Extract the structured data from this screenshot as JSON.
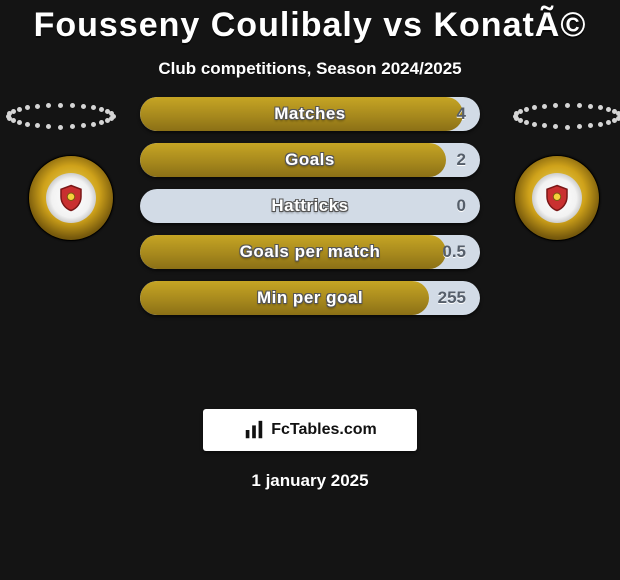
{
  "header": {
    "title": "Fousseny Coulibaly vs KonatÃ©",
    "subtitle": "Club competitions, Season 2024/2025"
  },
  "bars": {
    "track_color": "#d2dbe6",
    "fill_gradient": [
      "#c6a524",
      "#a7891d",
      "#8b7016"
    ],
    "items": [
      {
        "label": "Matches",
        "value": "4",
        "fill_pct": 95
      },
      {
        "label": "Goals",
        "value": "2",
        "fill_pct": 90
      },
      {
        "label": "Hattricks",
        "value": "0",
        "fill_pct": 0
      },
      {
        "label": "Goals per match",
        "value": "0.5",
        "fill_pct": 90
      },
      {
        "label": "Min per goal",
        "value": "255",
        "fill_pct": 85
      }
    ]
  },
  "branding": {
    "text": "FcTables.com"
  },
  "footer": {
    "date": "1 january 2025"
  },
  "colors": {
    "page_bg": "#141414",
    "text": "#ffffff",
    "bar_value": "#555e6a"
  }
}
